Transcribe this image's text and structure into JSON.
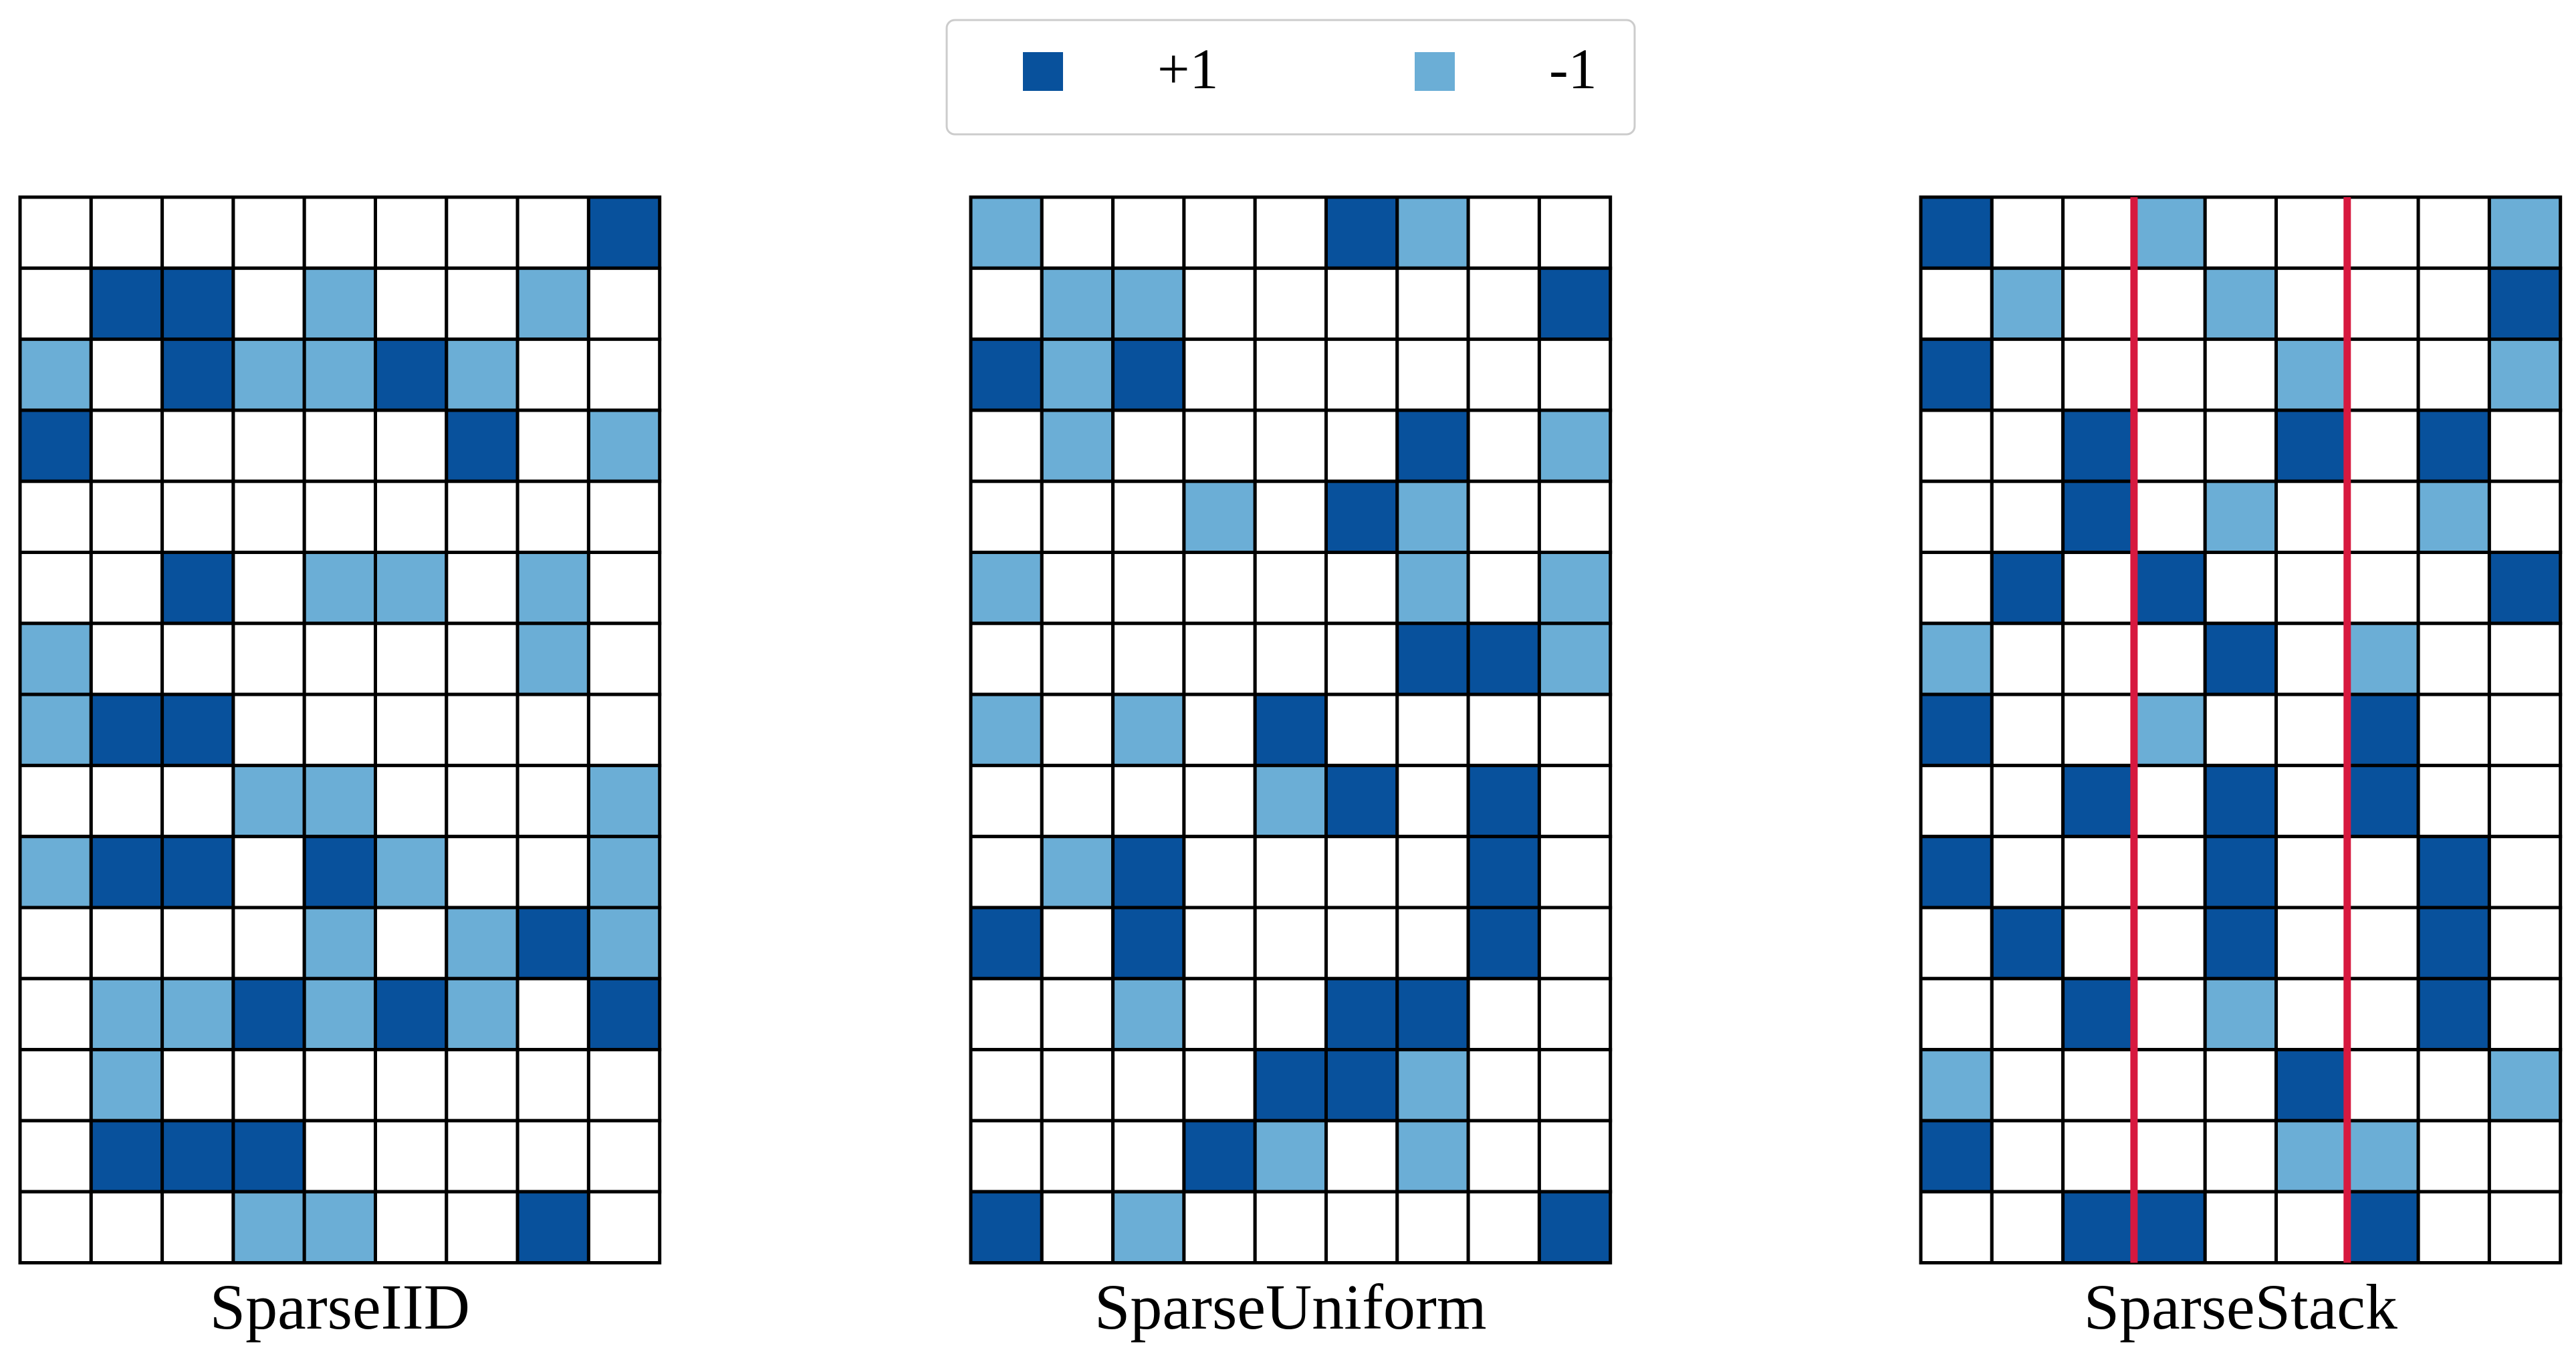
{
  "legend": {
    "items": [
      {
        "label": "+1",
        "color": "#08519c",
        "value": 1
      },
      {
        "label": "-1",
        "color": "#6baed6",
        "value": -1
      }
    ],
    "placement": "top-center"
  },
  "colors": {
    "positive": "#08519c",
    "negative": "#6baed6",
    "zero": "#ffffff",
    "grid_line": "#000000",
    "divider": "#d7193f"
  },
  "chart_data": [
    {
      "type": "heatmap",
      "title": "SparseIID",
      "rows": 15,
      "cols": 9,
      "values": [
        [
          0,
          0,
          0,
          0,
          0,
          0,
          0,
          0,
          1
        ],
        [
          0,
          1,
          1,
          0,
          -1,
          0,
          0,
          -1,
          0
        ],
        [
          -1,
          0,
          1,
          -1,
          -1,
          1,
          -1,
          0,
          0
        ],
        [
          1,
          0,
          0,
          0,
          0,
          0,
          1,
          0,
          -1
        ],
        [
          0,
          0,
          0,
          0,
          0,
          0,
          0,
          0,
          0
        ],
        [
          0,
          0,
          1,
          0,
          -1,
          -1,
          0,
          -1,
          0
        ],
        [
          -1,
          0,
          0,
          0,
          0,
          0,
          0,
          -1,
          0
        ],
        [
          -1,
          1,
          1,
          0,
          0,
          0,
          0,
          0,
          0
        ],
        [
          0,
          0,
          0,
          -1,
          -1,
          0,
          0,
          0,
          -1
        ],
        [
          -1,
          1,
          1,
          0,
          1,
          -1,
          0,
          0,
          -1
        ],
        [
          0,
          0,
          0,
          0,
          -1,
          0,
          -1,
          1,
          -1
        ],
        [
          0,
          -1,
          -1,
          1,
          -1,
          1,
          -1,
          0,
          1
        ],
        [
          0,
          -1,
          0,
          0,
          0,
          0,
          0,
          0,
          0
        ],
        [
          0,
          1,
          1,
          1,
          0,
          0,
          0,
          0,
          0
        ],
        [
          0,
          0,
          0,
          -1,
          -1,
          0,
          0,
          1,
          0
        ]
      ],
      "dividers_after_col": []
    },
    {
      "type": "heatmap",
      "title": "SparseUniform",
      "rows": 15,
      "cols": 9,
      "values": [
        [
          -1,
          0,
          0,
          0,
          0,
          1,
          -1,
          0,
          0
        ],
        [
          0,
          -1,
          -1,
          0,
          0,
          0,
          0,
          0,
          1
        ],
        [
          1,
          -1,
          1,
          0,
          0,
          0,
          0,
          0,
          0
        ],
        [
          0,
          -1,
          0,
          0,
          0,
          0,
          1,
          0,
          -1
        ],
        [
          0,
          0,
          0,
          -1,
          0,
          1,
          -1,
          0,
          0
        ],
        [
          -1,
          0,
          0,
          0,
          0,
          0,
          -1,
          0,
          -1
        ],
        [
          0,
          0,
          0,
          0,
          0,
          0,
          1,
          1,
          -1
        ],
        [
          -1,
          0,
          -1,
          0,
          1,
          0,
          0,
          0,
          0
        ],
        [
          0,
          0,
          0,
          0,
          -1,
          1,
          0,
          1,
          0
        ],
        [
          0,
          -1,
          1,
          0,
          0,
          0,
          0,
          1,
          0
        ],
        [
          1,
          0,
          1,
          0,
          0,
          0,
          0,
          1,
          0
        ],
        [
          0,
          0,
          -1,
          0,
          0,
          1,
          1,
          0,
          0
        ],
        [
          0,
          0,
          0,
          0,
          1,
          1,
          -1,
          0,
          0
        ],
        [
          0,
          0,
          0,
          1,
          -1,
          0,
          -1,
          0,
          0
        ],
        [
          1,
          0,
          -1,
          0,
          0,
          0,
          0,
          0,
          1
        ]
      ],
      "dividers_after_col": []
    },
    {
      "type": "heatmap",
      "title": "SparseStack",
      "rows": 15,
      "cols": 9,
      "values": [
        [
          1,
          0,
          0,
          -1,
          0,
          0,
          0,
          0,
          -1
        ],
        [
          0,
          -1,
          0,
          0,
          -1,
          0,
          0,
          0,
          1
        ],
        [
          1,
          0,
          0,
          0,
          0,
          -1,
          0,
          0,
          -1
        ],
        [
          0,
          0,
          1,
          0,
          0,
          1,
          0,
          1,
          0
        ],
        [
          0,
          0,
          1,
          0,
          -1,
          0,
          0,
          -1,
          0
        ],
        [
          0,
          1,
          0,
          1,
          0,
          0,
          0,
          0,
          1
        ],
        [
          -1,
          0,
          0,
          0,
          1,
          0,
          -1,
          0,
          0
        ],
        [
          1,
          0,
          0,
          -1,
          0,
          0,
          1,
          0,
          0
        ],
        [
          0,
          0,
          1,
          0,
          1,
          0,
          1,
          0,
          0
        ],
        [
          1,
          0,
          0,
          0,
          1,
          0,
          0,
          1,
          0
        ],
        [
          0,
          1,
          0,
          0,
          1,
          0,
          0,
          1,
          0
        ],
        [
          0,
          0,
          1,
          0,
          -1,
          0,
          0,
          1,
          0
        ],
        [
          -1,
          0,
          0,
          0,
          0,
          1,
          0,
          0,
          -1
        ],
        [
          1,
          0,
          0,
          0,
          0,
          -1,
          -1,
          0,
          0
        ],
        [
          0,
          0,
          1,
          1,
          0,
          0,
          1,
          0,
          0
        ]
      ],
      "dividers_after_col": [
        3,
        6
      ]
    }
  ]
}
